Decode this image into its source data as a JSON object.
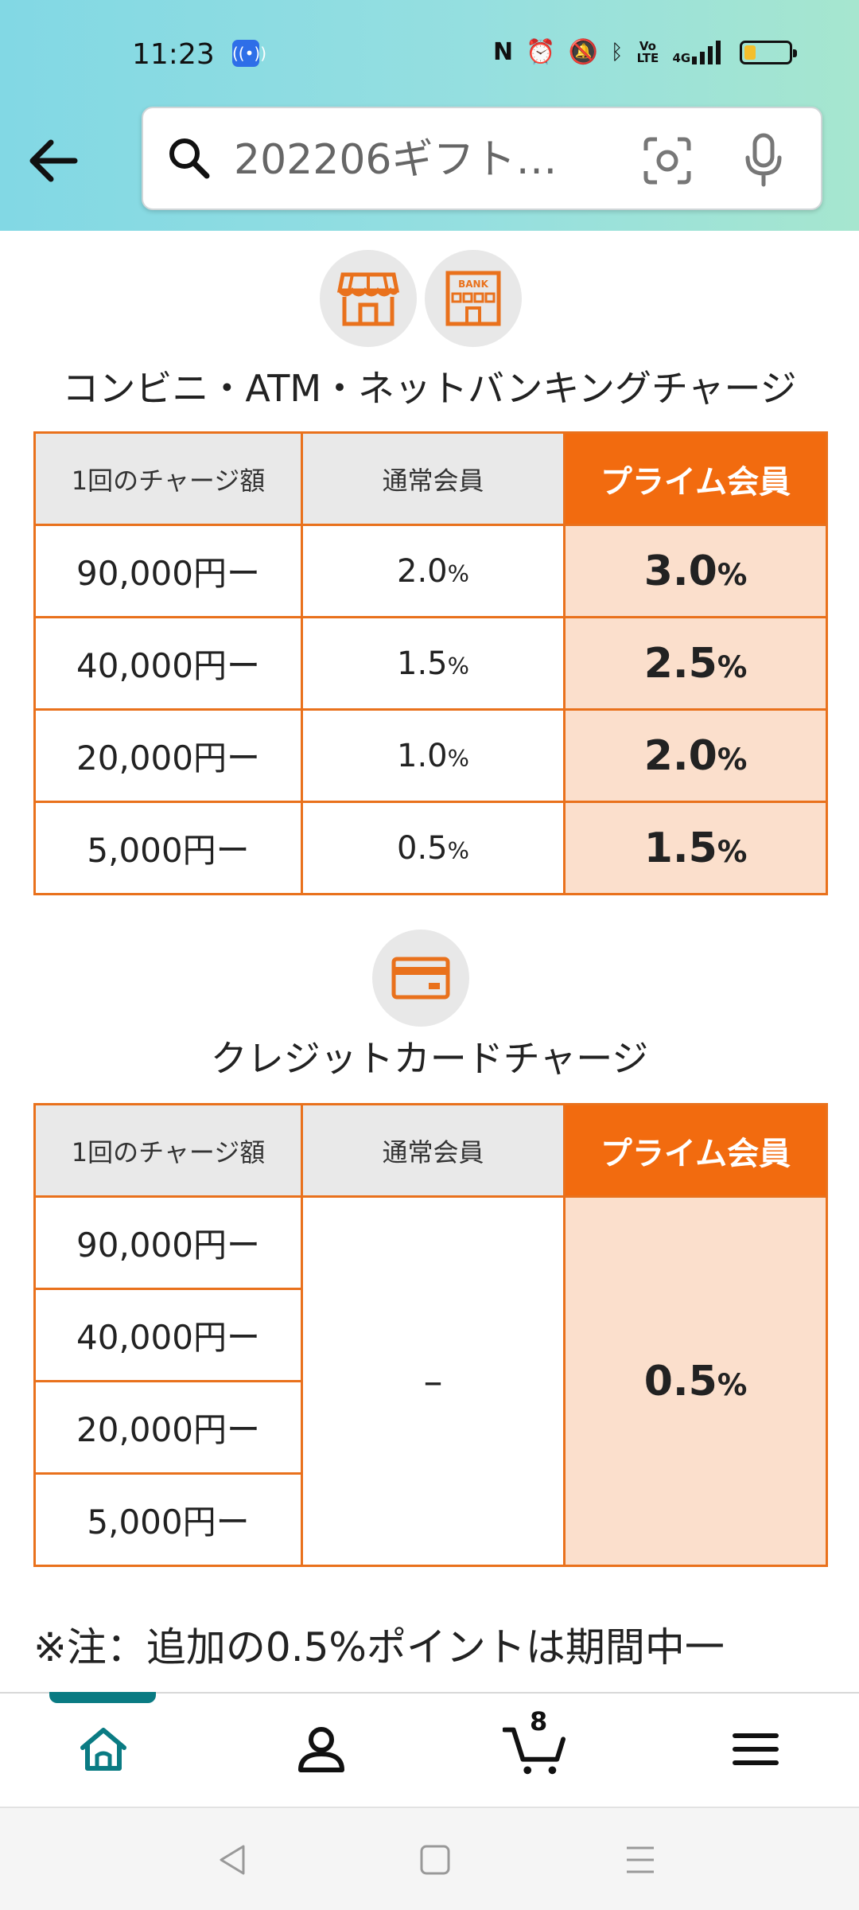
{
  "status_bar": {
    "time": "11:23",
    "icons": [
      "nfc-icon",
      "alarm-icon",
      "mute-icon",
      "bluetooth-icon",
      "volte-icon",
      "4g-signal-icon",
      "battery-icon"
    ],
    "volte_label": "Vo LTE",
    "net_label": "4G",
    "battery_level": 0.25
  },
  "search": {
    "value": "202206ギフト…"
  },
  "section1": {
    "icons": [
      "store-icon",
      "bank-icon"
    ],
    "bank_label": "BANK",
    "title": "コンビニ・ATM・ネットバンキングチャージ",
    "headers": [
      "1回のチャージ額",
      "通常会員",
      "プライム会員"
    ],
    "rows": [
      {
        "amount": "90,000円ー",
        "regular": "2.0",
        "prime": "3.0"
      },
      {
        "amount": "40,000円ー",
        "regular": "1.5",
        "prime": "2.5"
      },
      {
        "amount": "20,000円ー",
        "regular": "1.0",
        "prime": "2.0"
      },
      {
        "amount": "5,000円ー",
        "regular": "0.5",
        "prime": "1.5"
      }
    ],
    "pct_sign": "%"
  },
  "section2": {
    "icon": "credit-card-icon",
    "title": "クレジットカードチャージ",
    "headers": [
      "1回のチャージ額",
      "通常会員",
      "プライム会員"
    ],
    "amounts": [
      "90,000円ー",
      "40,000円ー",
      "20,000円ー",
      "5,000円ー"
    ],
    "regular": "–",
    "prime": "0.5",
    "pct_sign": "%"
  },
  "note": "※注：追加の0.5%ポイントは期間中一",
  "bottom_nav": {
    "items": [
      "home-icon",
      "account-icon",
      "cart-icon",
      "menu-icon"
    ],
    "cart_count": "8",
    "accent": "#0a7b83"
  },
  "colors": {
    "accent_orange": "#f26b0f",
    "border_orange": "#e9711c",
    "prime_cell_bg": "#fbdfcc"
  }
}
